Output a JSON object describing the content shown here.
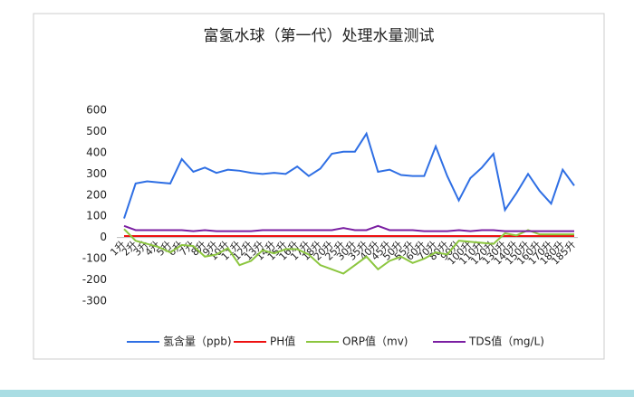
{
  "chart_data": {
    "type": "line",
    "title": "富氢水球（第一代）处理水量测试",
    "categories": [
      "1升",
      "2升",
      "3升",
      "4升",
      "5升",
      "6升",
      "7升",
      "8升",
      "9升",
      "10升",
      "11升",
      "12升",
      "13升",
      "14升",
      "15升",
      "16升",
      "17升",
      "18升",
      "20升",
      "25升",
      "30升",
      "35升",
      "40升",
      "45升",
      "50升",
      "55升",
      "60升",
      "70升",
      "80升",
      "90升",
      "100升",
      "110升",
      "120升",
      "130升",
      "140升",
      "150升",
      "160升",
      "170升",
      "180升",
      "185升"
    ],
    "series": [
      {
        "name": "氢含量（ppb)",
        "color": "#2f6fe4",
        "values": [
          90,
          255,
          265,
          260,
          255,
          370,
          310,
          330,
          305,
          320,
          315,
          305,
          300,
          305,
          300,
          335,
          290,
          325,
          395,
          405,
          405,
          490,
          310,
          320,
          295,
          290,
          290,
          430,
          290,
          175,
          280,
          330,
          395,
          130,
          210,
          300,
          220,
          160,
          320,
          245
        ]
      },
      {
        "name": "PH值",
        "color": "#ee1111",
        "values": [
          7,
          7,
          7,
          7,
          7,
          7,
          7,
          7,
          7,
          7,
          7,
          7,
          7,
          7,
          7,
          7,
          7,
          7,
          7,
          7,
          7,
          7,
          7,
          7,
          7,
          7,
          7,
          7,
          7,
          7,
          7,
          7,
          7,
          7,
          7,
          7,
          7,
          7,
          7,
          7
        ]
      },
      {
        "name": "ORP值（mv)",
        "color": "#8cc63f",
        "values": [
          40,
          -15,
          -30,
          -45,
          -70,
          -35,
          -40,
          -90,
          -80,
          -50,
          -130,
          -110,
          -60,
          -75,
          -55,
          -55,
          -80,
          -130,
          -150,
          -170,
          -130,
          -90,
          -150,
          -110,
          -90,
          -120,
          -100,
          -70,
          -80,
          -15,
          -20,
          -25,
          -30,
          20,
          10,
          35,
          15,
          15,
          15,
          15
        ]
      },
      {
        "name": "TDS值（mg/L)",
        "color": "#7b1fa2",
        "values": [
          55,
          35,
          35,
          35,
          35,
          35,
          30,
          35,
          30,
          30,
          30,
          30,
          35,
          35,
          35,
          35,
          35,
          35,
          35,
          45,
          35,
          35,
          55,
          35,
          35,
          35,
          30,
          30,
          30,
          35,
          30,
          35,
          35,
          30,
          30,
          30,
          30,
          30,
          30,
          30
        ]
      }
    ],
    "ylim": [
      -300,
      600
    ],
    "yticks": [
      -300,
      -200,
      -100,
      0,
      100,
      200,
      300,
      400,
      500,
      600
    ],
    "legend": "bottom"
  }
}
